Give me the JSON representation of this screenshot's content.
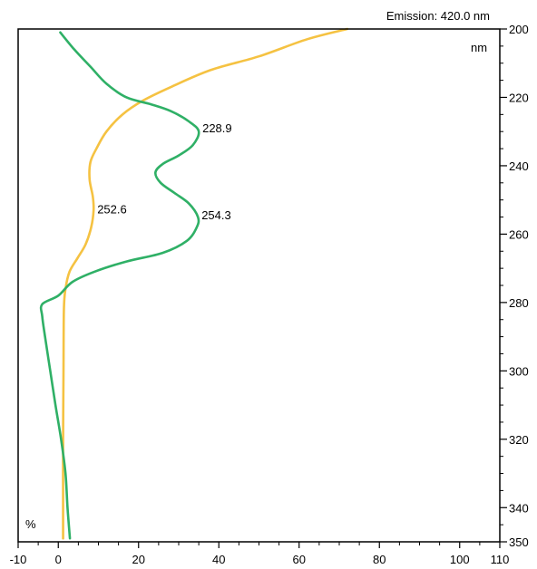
{
  "chart_data": {
    "type": "line",
    "title": "Emission: 420.0 nm",
    "xlabel": "%",
    "ylabel": "nm",
    "xlim": [
      -10,
      110
    ],
    "ylim": [
      200,
      350
    ],
    "y_inverted": true,
    "y_axis_position": "right",
    "x_ticks": [
      -10,
      0,
      20,
      40,
      60,
      80,
      100,
      110
    ],
    "y_ticks": [
      200,
      220,
      240,
      260,
      280,
      300,
      320,
      340,
      350
    ],
    "grid": false,
    "series": [
      {
        "color": "#f5c242",
        "points": [
          [
            72,
            200
          ],
          [
            62,
            203
          ],
          [
            50,
            208
          ],
          [
            38,
            212
          ],
          [
            28,
            217
          ],
          [
            21,
            221
          ],
          [
            16,
            225
          ],
          [
            12,
            230
          ],
          [
            9.5,
            235
          ],
          [
            8,
            239
          ],
          [
            7.8,
            244
          ],
          [
            8.6,
            249
          ],
          [
            8.8,
            253
          ],
          [
            8.2,
            258
          ],
          [
            6.8,
            263
          ],
          [
            4.8,
            267
          ],
          [
            2.8,
            271
          ],
          [
            1.8,
            276
          ],
          [
            1.4,
            282
          ],
          [
            1.3,
            300
          ],
          [
            1.2,
            320
          ],
          [
            1.2,
            340
          ],
          [
            1.2,
            349
          ]
        ]
      },
      {
        "color": "#2fb066",
        "points": [
          [
            0.5,
            201
          ],
          [
            4,
            206
          ],
          [
            8,
            211
          ],
          [
            12,
            216
          ],
          [
            17,
            220
          ],
          [
            23,
            222
          ],
          [
            28,
            224
          ],
          [
            32.5,
            227
          ],
          [
            35,
            230
          ],
          [
            33.5,
            234
          ],
          [
            30,
            237
          ],
          [
            26,
            239.5
          ],
          [
            24.2,
            242
          ],
          [
            25.5,
            245
          ],
          [
            29,
            248
          ],
          [
            32.5,
            251
          ],
          [
            34.8,
            255
          ],
          [
            34.5,
            258
          ],
          [
            32,
            262
          ],
          [
            26,
            265.5
          ],
          [
            17,
            268
          ],
          [
            9,
            271
          ],
          [
            3.5,
            274
          ],
          [
            0,
            278
          ],
          [
            -4,
            280.5
          ],
          [
            -4,
            284
          ],
          [
            -3.3,
            290
          ],
          [
            -2,
            300
          ],
          [
            -0.7,
            310
          ],
          [
            0.7,
            320
          ],
          [
            1.8,
            330
          ],
          [
            2.3,
            340
          ],
          [
            2.9,
            349
          ]
        ]
      }
    ],
    "annotations": [
      {
        "text": "228.9",
        "x": 35,
        "y": 228.9
      },
      {
        "text": "252.6",
        "x": 8.8,
        "y": 252.6
      },
      {
        "text": "254.3",
        "x": 34.8,
        "y": 254.3
      }
    ]
  }
}
